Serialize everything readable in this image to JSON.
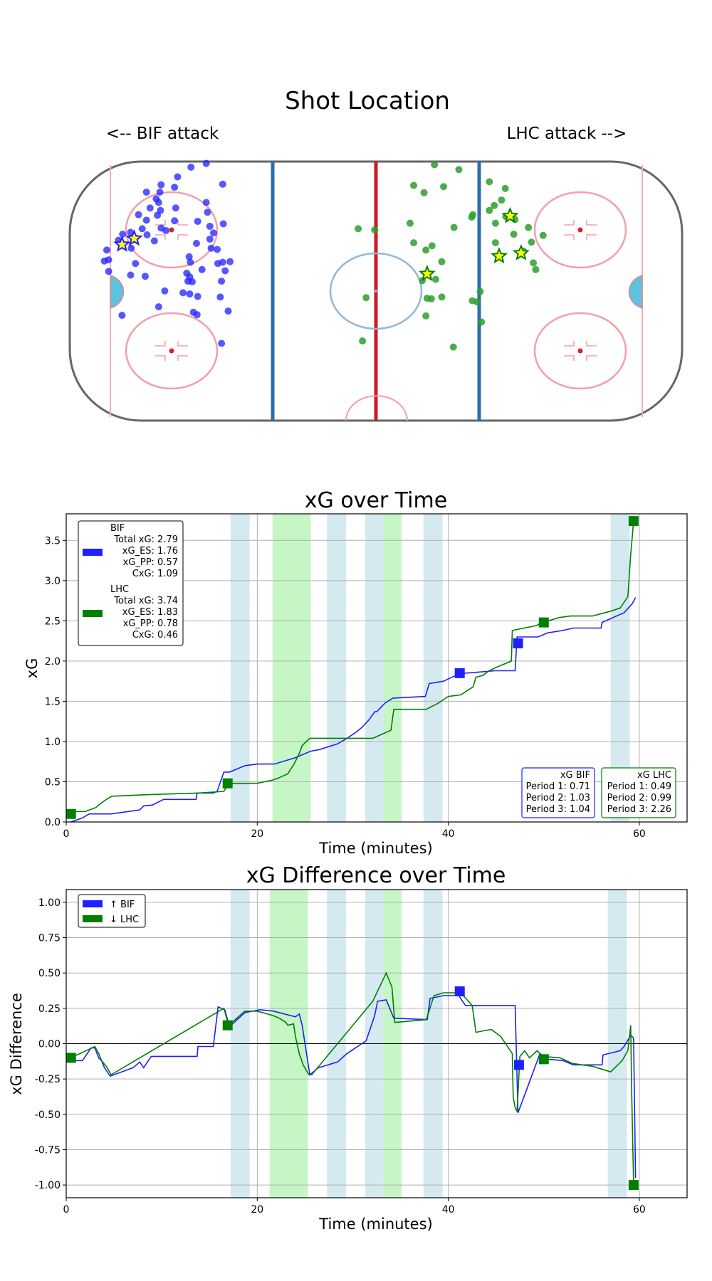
{
  "rink": {
    "title": "Shot Location",
    "left_label": "<-- BIF attack",
    "right_label": "LHC attack -->",
    "colors": {
      "bif": "#1f1fff",
      "lhc": "#2e9e2e",
      "goal_star_fill": "#ffff00"
    },
    "bif_shots": [
      [
        313,
        274
      ],
      [
        338,
        268
      ],
      [
        291,
        290
      ],
      [
        286,
        307
      ],
      [
        264,
        303
      ],
      [
        260,
        332
      ],
      [
        262,
        315
      ],
      [
        256,
        326
      ],
      [
        240,
        315
      ],
      [
        263,
        345
      ],
      [
        246,
        341
      ],
      [
        227,
        352
      ],
      [
        240,
        361
      ],
      [
        258,
        353
      ],
      [
        264,
        374
      ],
      [
        288,
        341
      ],
      [
        233,
        375
      ],
      [
        286,
        362
      ],
      [
        253,
        395
      ],
      [
        241,
        385
      ],
      [
        272,
        378
      ],
      [
        214,
        381
      ],
      [
        201,
        384
      ],
      [
        194,
        394
      ],
      [
        215,
        407
      ],
      [
        175,
        410
      ],
      [
        214,
        451
      ],
      [
        338,
        332
      ],
      [
        340,
        348
      ],
      [
        344,
        371
      ],
      [
        366,
        367
      ],
      [
        324,
        363
      ],
      [
        346,
        407
      ],
      [
        356,
        409
      ],
      [
        357,
        432
      ],
      [
        331,
        442
      ],
      [
        315,
        462
      ],
      [
        308,
        461
      ],
      [
        311,
        454
      ],
      [
        312,
        430
      ],
      [
        310,
        421
      ],
      [
        306,
        448
      ],
      [
        270,
        477
      ],
      [
        300,
        480
      ],
      [
        311,
        482
      ],
      [
        260,
        503
      ],
      [
        317,
        512
      ],
      [
        374,
        510
      ],
      [
        377,
        429
      ],
      [
        369,
        444
      ],
      [
        365,
        430
      ],
      [
        363,
        461
      ],
      [
        361,
        487
      ],
      [
        323,
        516
      ],
      [
        324,
        486
      ],
      [
        322,
        399
      ],
      [
        200,
        517
      ],
      [
        222,
        432
      ],
      [
        238,
        453
      ],
      [
        365,
        302
      ],
      [
        350,
        382
      ],
      [
        344,
        392
      ],
      [
        363,
        563
      ],
      [
        171,
        428
      ],
      [
        178,
        426
      ],
      [
        178,
        445
      ]
    ],
    "bif_goals": [
      [
        200,
        401
      ],
      [
        220,
        391
      ]
    ],
    "lhc_shots": [
      [
        712,
        270
      ],
      [
        752,
        278
      ],
      [
        678,
        304
      ],
      [
        695,
        316
      ],
      [
        727,
        306
      ],
      [
        802,
        298
      ],
      [
        828,
        309
      ],
      [
        822,
        328
      ],
      [
        810,
        337
      ],
      [
        802,
        345
      ],
      [
        829,
        355
      ],
      [
        844,
        360
      ],
      [
        773,
        356
      ],
      [
        812,
        366
      ],
      [
        866,
        373
      ],
      [
        842,
        384
      ],
      [
        890,
        386
      ],
      [
        871,
        397
      ],
      [
        858,
        412
      ],
      [
        812,
        398
      ],
      [
        775,
        352
      ],
      [
        744,
        373
      ],
      [
        672,
        366
      ],
      [
        678,
        398
      ],
      [
        698,
        410
      ],
      [
        708,
        403
      ],
      [
        587,
        375
      ],
      [
        614,
        377
      ],
      [
        724,
        429
      ],
      [
        714,
        458
      ],
      [
        692,
        460
      ],
      [
        700,
        489
      ],
      [
        707,
        490
      ],
      [
        724,
        487
      ],
      [
        787,
        478
      ],
      [
        782,
        495
      ],
      [
        774,
        493
      ],
      [
        874,
        431
      ],
      [
        878,
        442
      ],
      [
        789,
        528
      ],
      [
        600,
        488
      ],
      [
        594,
        559
      ],
      [
        743,
        569
      ],
      [
        698,
        518
      ]
    ],
    "lhc_goals": [
      [
        836,
        354
      ],
      [
        818,
        420
      ],
      [
        854,
        415
      ],
      [
        700,
        449
      ]
    ]
  },
  "chart_data": [
    {
      "type": "line",
      "title": "xG over Time",
      "xlabel": "Time (minutes)",
      "ylabel": "xG",
      "xlim": [
        0,
        65
      ],
      "ylim": [
        0,
        3.83
      ],
      "xticks": [
        "0",
        "20",
        "40",
        "60"
      ],
      "yticks": [
        "0.0",
        "0.5",
        "1.0",
        "1.5",
        "2.0",
        "2.5",
        "3.0",
        "3.5"
      ],
      "grid": true,
      "penalty_bands": [
        {
          "from": 17.2,
          "to": 19.2,
          "color": "#d4eaf0"
        },
        {
          "from": 21.6,
          "to": 25.6,
          "color": "#c6f6c6"
        },
        {
          "from": 27.3,
          "to": 29.3,
          "color": "#d4eaf0"
        },
        {
          "from": 31.3,
          "to": 33.2,
          "color": "#d4eaf0"
        },
        {
          "from": 33.2,
          "to": 35.1,
          "color": "#c6f6c6"
        },
        {
          "from": 37.4,
          "to": 39.4,
          "color": "#d4eaf0"
        },
        {
          "from": 57.0,
          "to": 59.0,
          "color": "#d4eaf0"
        }
      ],
      "series": [
        {
          "name": "BIF",
          "color": "#1f1fff",
          "x": [
            0.5,
            1.7,
            2.4,
            4.7,
            6.5,
            7.7,
            8.1,
            9.0,
            10.2,
            13.6,
            13.7,
            15.4,
            15.8,
            16.5,
            17.1,
            18.7,
            20.0,
            21.8,
            24.0,
            25.6,
            26.5,
            28.4,
            29.4,
            30.4,
            31.0,
            31.7,
            32.3,
            32.5,
            33.4,
            34.2,
            34.3,
            37.6,
            38.0,
            39.5,
            41.3,
            41.9,
            44.9,
            47.0,
            47.2,
            49.4,
            50.4,
            52.0,
            53.1,
            56.0,
            56.1,
            58.0,
            58.4,
            59.3,
            59.6
          ],
          "y": [
            0.0,
            0.05,
            0.1,
            0.1,
            0.13,
            0.15,
            0.2,
            0.21,
            0.28,
            0.28,
            0.36,
            0.36,
            0.38,
            0.62,
            0.62,
            0.7,
            0.72,
            0.72,
            0.8,
            0.88,
            0.9,
            0.97,
            1.04,
            1.12,
            1.18,
            1.27,
            1.37,
            1.37,
            1.48,
            1.54,
            1.54,
            1.56,
            1.72,
            1.75,
            1.85,
            1.85,
            1.88,
            1.88,
            2.3,
            2.3,
            2.35,
            2.38,
            2.41,
            2.41,
            2.48,
            2.58,
            2.6,
            2.72,
            2.79
          ],
          "markers": [
            [
              41.2,
              1.85
            ],
            [
              47.3,
              2.22
            ]
          ]
        },
        {
          "name": "LHC",
          "color": "#007f00",
          "x": [
            0.5,
            2.0,
            3.1,
            3.5,
            4.2,
            4.8,
            8.6,
            13.9,
            16.5,
            17.0,
            20.0,
            21.6,
            22.3,
            23.2,
            23.9,
            24.4,
            24.7,
            25.5,
            32.1,
            34.0,
            34.3,
            37.7,
            39.0,
            40.0,
            41.3,
            42.6,
            42.9,
            43.6,
            44.3,
            45.0,
            46.6,
            46.7,
            49.2,
            49.9,
            51.6,
            52.8,
            55.1,
            57.0,
            58.0,
            58.8,
            59.1,
            59.4
          ],
          "y": [
            0.13,
            0.13,
            0.18,
            0.22,
            0.28,
            0.32,
            0.34,
            0.36,
            0.38,
            0.48,
            0.48,
            0.52,
            0.55,
            0.6,
            0.73,
            0.85,
            0.95,
            1.04,
            1.04,
            1.14,
            1.4,
            1.4,
            1.48,
            1.56,
            1.58,
            1.68,
            1.8,
            1.82,
            1.88,
            1.92,
            2.0,
            2.38,
            2.44,
            2.48,
            2.54,
            2.56,
            2.56,
            2.62,
            2.66,
            2.8,
            3.32,
            3.74
          ],
          "markers": [
            [
              0.5,
              0.1
            ],
            [
              16.9,
              0.48
            ],
            [
              50.0,
              2.48
            ],
            [
              59.4,
              3.74
            ]
          ]
        }
      ],
      "legend": {
        "placement": "top-left",
        "bif_lines": [
          "BIF",
          "Total xG: 2.79",
          "xG_ES: 1.76",
          "xG_PP: 0.57",
          "CxG: 1.09"
        ],
        "lhc_lines": [
          "LHC",
          "Total xG: 3.74",
          "xG_ES: 1.83",
          "xG_PP: 0.78",
          "CxG: 0.46"
        ]
      },
      "period_boxes": {
        "bif_lines": [
          "xG BIF",
          "Period 1: 0.71",
          "Period 2: 1.03",
          "Period 3: 1.04"
        ],
        "lhc_lines": [
          "xG LHC",
          "Period 1: 0.49",
          "Period 2: 0.99",
          "Period 3: 2.26"
        ]
      }
    },
    {
      "type": "line",
      "title": "xG Difference over Time",
      "xlabel": "Time (minutes)",
      "ylabel": "xG Difference",
      "xlim": [
        0,
        65
      ],
      "ylim": [
        -1.09,
        1.09
      ],
      "xticks": [
        "0",
        "20",
        "40",
        "60"
      ],
      "yticks": [
        "1.00",
        "0.75",
        "0.50",
        "0.25",
        "0.00",
        "-0.25",
        "-0.50",
        "-0.75",
        "-1.00"
      ],
      "grid": true,
      "penalty_bands": [
        {
          "from": 17.2,
          "to": 19.2,
          "color": "#d4eaf0"
        },
        {
          "from": 21.3,
          "to": 25.3,
          "color": "#c6f6c6"
        },
        {
          "from": 27.3,
          "to": 29.3,
          "color": "#d4eaf0"
        },
        {
          "from": 31.3,
          "to": 33.2,
          "color": "#d4eaf0"
        },
        {
          "from": 33.2,
          "to": 35.1,
          "color": "#c6f6c6"
        },
        {
          "from": 37.4,
          "to": 39.4,
          "color": "#d4eaf0"
        },
        {
          "from": 56.7,
          "to": 58.7,
          "color": "#d4eaf0"
        }
      ],
      "series": [
        {
          "name": "",
          "color": "#1f1fff",
          "x": [
            0.5,
            1.7,
            2.3,
            2.6,
            3.0,
            3.4,
            3.7,
            4.0,
            4.6,
            7.0,
            7.7,
            8.1,
            8.5,
            8.9,
            9.9,
            13.7,
            13.8,
            15.4,
            15.9,
            16.6,
            17.1,
            18.7,
            20.3,
            21.7,
            24.0,
            24.4,
            24.7,
            25.5,
            26.4,
            28.4,
            29.4,
            31.4,
            31.7,
            32.3,
            32.6,
            33.5,
            34.3,
            37.8,
            38.1,
            39.5,
            41.1,
            41.8,
            44.9,
            47.0,
            47.3,
            49.6,
            50.4,
            52.0,
            53.1,
            56.1,
            56.2,
            58.0,
            58.4,
            59.1,
            59.4,
            59.6
          ],
          "y": [
            -0.12,
            -0.12,
            -0.06,
            -0.03,
            -0.03,
            -0.1,
            -0.12,
            -0.17,
            -0.23,
            -0.17,
            -0.13,
            -0.17,
            -0.13,
            -0.09,
            -0.09,
            -0.09,
            -0.02,
            -0.02,
            0.26,
            0.24,
            0.12,
            0.22,
            0.24,
            0.23,
            0.19,
            0.21,
            0.13,
            -0.22,
            -0.17,
            -0.13,
            -0.07,
            0.02,
            0.08,
            0.2,
            0.3,
            0.31,
            0.18,
            0.17,
            0.32,
            0.34,
            0.34,
            0.27,
            0.27,
            0.27,
            -0.49,
            -0.07,
            -0.11,
            -0.12,
            -0.15,
            -0.15,
            -0.08,
            -0.05,
            -0.02,
            0.06,
            0.04,
            -0.95
          ],
          "markers": [
            [
              41.2,
              0.37
            ],
            [
              47.4,
              -0.15
            ]
          ]
        },
        {
          "name": "",
          "color": "#007f00",
          "x": [
            0.5,
            3.0,
            3.4,
            3.7,
            4.2,
            4.7,
            16.5,
            17.0,
            18.7,
            20.0,
            21.6,
            22.3,
            23.0,
            23.2,
            23.8,
            24.0,
            24.4,
            24.8,
            25.4,
            25.7,
            32.1,
            33.5,
            34.1,
            34.4,
            37.7,
            38.5,
            39.5,
            41.3,
            42.5,
            42.9,
            43.6,
            44.5,
            45.5,
            46.5,
            46.7,
            46.8,
            47.0,
            47.2,
            47.5,
            48.0,
            48.5,
            49.3,
            49.9,
            51.7,
            53.0,
            55.1,
            57.0,
            58.2,
            58.8,
            59.1,
            59.2,
            59.4
          ],
          "y": [
            -0.1,
            -0.02,
            -0.07,
            -0.12,
            -0.16,
            -0.22,
            0.25,
            0.13,
            0.23,
            0.23,
            0.2,
            0.18,
            0.15,
            0.13,
            0.14,
            0.05,
            -0.07,
            -0.15,
            -0.22,
            -0.22,
            0.3,
            0.5,
            0.4,
            0.15,
            0.17,
            0.34,
            0.36,
            0.36,
            0.27,
            0.08,
            0.09,
            0.1,
            0.05,
            -0.05,
            -0.07,
            -0.38,
            -0.45,
            -0.48,
            -0.09,
            -0.05,
            -0.1,
            -0.05,
            -0.09,
            -0.1,
            -0.14,
            -0.16,
            -0.2,
            -0.12,
            -0.05,
            0.13,
            -0.35,
            -1.0
          ],
          "markers": [
            [
              0.5,
              -0.1
            ],
            [
              16.9,
              0.13
            ],
            [
              50.0,
              -0.11
            ],
            [
              59.4,
              -1.0
            ]
          ]
        }
      ],
      "legend": {
        "placement": "top-left",
        "entries": [
          "↑ BIF",
          "↓ LHC"
        ]
      }
    }
  ]
}
